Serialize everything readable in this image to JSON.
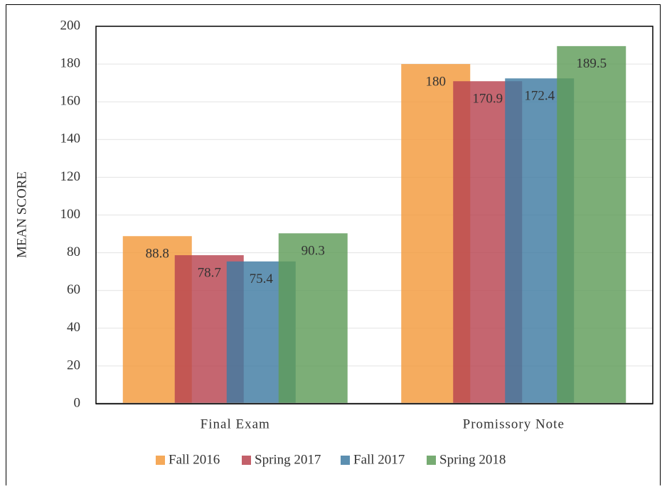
{
  "chart_data": {
    "type": "bar",
    "y_label": "MEAN SCORE",
    "categories": [
      "Final Exam",
      "Promissory Note"
    ],
    "series": [
      {
        "name": "Fall 2016",
        "color": "#f39a3c",
        "values": [
          88.8,
          180
        ]
      },
      {
        "name": "Spring 2017",
        "color": "#b84450",
        "values": [
          78.7,
          170.9
        ]
      },
      {
        "name": "Fall 2017",
        "color": "#3f7ba2",
        "values": [
          75.4,
          172.4
        ]
      },
      {
        "name": "Spring 2018",
        "color": "#5f9c59",
        "values": [
          90.3,
          189.5
        ]
      }
    ],
    "ylim": [
      0,
      200
    ],
    "yticks": [
      0,
      20,
      40,
      60,
      80,
      100,
      120,
      140,
      160,
      180,
      200
    ],
    "grid": true,
    "legend": "bottom"
  }
}
